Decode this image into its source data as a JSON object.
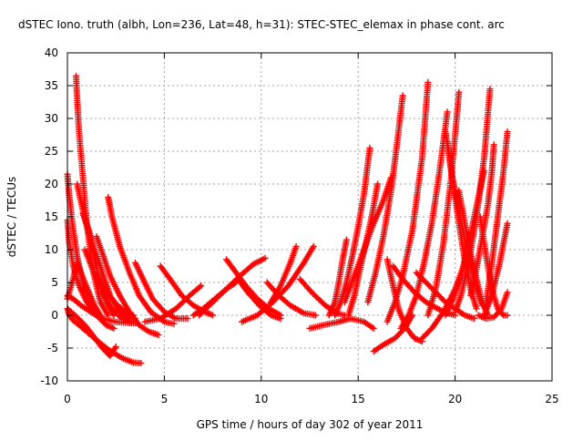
{
  "chart_data": {
    "type": "scatter",
    "title": "dSTEC Iono. truth (albh, Lon=236, Lat=48, h=31): STEC-STEC_elemax in phase cont. arc",
    "xlabel": "GPS time / hours of day 302 of year 2011",
    "ylabel": "dSTEC  / TECUs",
    "xlim": [
      0,
      25
    ],
    "ylim": [
      -10,
      40
    ],
    "xticks": [
      "0",
      "5",
      "10",
      "15",
      "20",
      "25"
    ],
    "yticks": [
      "-10",
      "-5",
      "0",
      "5",
      "10",
      "15",
      "20",
      "25",
      "30",
      "35",
      "40"
    ],
    "grid": true,
    "marker": "plus",
    "color": "#ff0000",
    "series": [
      {
        "x": [
          0.0,
          0.1,
          0.3,
          0.6,
          1.0,
          1.5,
          2.1,
          2.8,
          3.4,
          3.8
        ],
        "y": [
          1,
          0,
          -0.8,
          -1.5,
          -2.5,
          -3.8,
          -5.2,
          -6.5,
          -7.2,
          -7.3
        ]
      },
      {
        "x": [
          0.0,
          0.2,
          0.5,
          0.9,
          1.3,
          1.8,
          2.2,
          2.5
        ],
        "y": [
          1,
          0.5,
          -0.3,
          -1.5,
          -3.0,
          -5.0,
          -6.2,
          -4.8
        ]
      },
      {
        "x": [
          0.0,
          0.1,
          0.3,
          0.5,
          0.8,
          1.1,
          1.5
        ],
        "y": [
          21.5,
          18,
          13,
          9,
          5,
          2.5,
          0
        ]
      },
      {
        "x": [
          0.0,
          0.1,
          0.3,
          0.6,
          1.0,
          1.5,
          2.0,
          2.4
        ],
        "y": [
          14.5,
          11,
          7.5,
          4.5,
          2,
          0,
          -1.5,
          -2
        ]
      },
      {
        "x": [
          0.0,
          0.2,
          0.5,
          0.9,
          1.4,
          1.8
        ],
        "y": [
          2.5,
          4.5,
          8,
          5,
          1.5,
          -0.5
        ]
      },
      {
        "x": [
          0.0,
          0.3,
          0.7,
          1.2,
          1.8,
          2.5,
          3.2,
          3.6
        ],
        "y": [
          3,
          2.5,
          1.5,
          0.5,
          -0.5,
          -1.0,
          -1.2,
          -1.2
        ]
      },
      {
        "x": [
          0.45,
          0.5,
          0.6,
          0.8,
          1.0,
          1.3,
          1.7,
          2.1
        ],
        "y": [
          36.5,
          33,
          28,
          21,
          14,
          7,
          2,
          0
        ]
      },
      {
        "x": [
          0.5,
          0.8,
          1.1,
          1.4,
          1.7,
          2.0,
          2.4
        ],
        "y": [
          20,
          16,
          12.5,
          8.5,
          5,
          2,
          0
        ]
      },
      {
        "x": [
          0.8,
          1.1,
          1.4,
          1.8,
          2.2,
          2.7,
          3.2,
          3.5
        ],
        "y": [
          15.5,
          13,
          10,
          6.5,
          3,
          0.5,
          -0.5,
          -0.5
        ]
      },
      {
        "x": [
          0.9,
          1.3,
          1.8,
          2.3,
          2.8,
          3.3
        ],
        "y": [
          10,
          7,
          3.5,
          1,
          -0.5,
          -1
        ]
      },
      {
        "x": [
          1.5,
          1.8,
          2.2,
          2.7,
          3.2,
          3.7,
          4.2,
          4.7
        ],
        "y": [
          12,
          9.5,
          6,
          3,
          0.5,
          -1.5,
          -2.5,
          -3.0
        ]
      },
      {
        "x": [
          1.5,
          1.8,
          2.2,
          2.6,
          3.0,
          3.4
        ],
        "y": [
          6,
          4.5,
          2.8,
          1.5,
          0.5,
          0
        ]
      },
      {
        "x": [
          2.1,
          2.3,
          2.7,
          3.2,
          3.7,
          4.3,
          5.0,
          5.5
        ],
        "y": [
          18,
          15,
          10.5,
          6.5,
          3,
          0.5,
          -1,
          -1.3
        ]
      },
      {
        "x": [
          3.5,
          3.9,
          4.4,
          5.0,
          5.6,
          6.2
        ],
        "y": [
          8,
          5.5,
          2.5,
          0.5,
          -0.5,
          -0.5
        ]
      },
      {
        "x": [
          4.8,
          5.3,
          5.9,
          6.5,
          7.1,
          7.5
        ],
        "y": [
          7.5,
          5.5,
          3,
          1.5,
          0.5,
          0
        ]
      },
      {
        "x": [
          4.0,
          4.8,
          5.6,
          6.3,
          6.9
        ],
        "y": [
          -1,
          -0.5,
          1,
          3,
          4.5
        ]
      },
      {
        "x": [
          6.5,
          7.0,
          7.6,
          8.2,
          8.7
        ],
        "y": [
          0,
          1,
          2.5,
          4,
          5
        ]
      },
      {
        "x": [
          6.8,
          7.5,
          8.2,
          8.9,
          9.6,
          10.2
        ],
        "y": [
          0,
          2,
          4,
          6,
          7.8,
          8.7
        ]
      },
      {
        "x": [
          8.2,
          8.7,
          9.2,
          9.8,
          10.4,
          11.0
        ],
        "y": [
          8.5,
          6.5,
          4.5,
          2.5,
          1,
          0
        ]
      },
      {
        "x": [
          8.8,
          9.3,
          9.9,
          10.5,
          11.0
        ],
        "y": [
          5.5,
          3.5,
          1.5,
          0,
          -0.5
        ]
      },
      {
        "x": [
          9.0,
          9.8,
          10.6,
          11.4,
          12.2,
          12.7
        ],
        "y": [
          -1,
          0,
          2,
          4.5,
          8,
          10.5
        ]
      },
      {
        "x": [
          10.3,
          10.9,
          11.5,
          12.2,
          12.8
        ],
        "y": [
          5,
          3,
          1.5,
          0.3,
          0
        ]
      },
      {
        "x": [
          10.5,
          11.0,
          11.5,
          11.8
        ],
        "y": [
          2,
          4.5,
          8,
          10.5
        ]
      },
      {
        "x": [
          12.0,
          12.6,
          13.3,
          13.9,
          14.3
        ],
        "y": [
          5.5,
          3.5,
          1.5,
          0.3,
          0
        ]
      },
      {
        "x": [
          12.5,
          13.2,
          14.0,
          14.6,
          15.3,
          15.8
        ],
        "y": [
          -2,
          -1.5,
          -1,
          -0.5,
          -1,
          -2
        ]
      },
      {
        "x": [
          13.5,
          13.8,
          14.0,
          14.2,
          14.4
        ],
        "y": [
          0,
          2,
          5,
          8.5,
          11.5
        ]
      },
      {
        "x": [
          13.8,
          14.1,
          14.4,
          14.7,
          15.0,
          15.3,
          15.6
        ],
        "y": [
          0,
          2,
          5,
          9,
          13.5,
          18.5,
          25.5
        ]
      },
      {
        "x": [
          14.5,
          14.8,
          15.1,
          15.4,
          15.7,
          16.0
        ],
        "y": [
          0,
          3,
          7,
          11,
          15,
          20
        ]
      },
      {
        "x": [
          14.3,
          14.8,
          15.3,
          15.8,
          16.3,
          16.7
        ],
        "y": [
          2,
          6,
          10,
          14,
          17.5,
          21
        ]
      },
      {
        "x": [
          15.5,
          15.9,
          16.3,
          16.7,
          17.0,
          17.3
        ],
        "y": [
          2,
          6.5,
          12,
          19,
          26,
          33.5
        ]
      },
      {
        "x": [
          15.8,
          16.3,
          16.9,
          17.4,
          17.8
        ],
        "y": [
          -5.5,
          -4.5,
          -3.5,
          -2,
          0
        ]
      },
      {
        "x": [
          16.5,
          16.9,
          17.3,
          17.8,
          18.3,
          18.6
        ],
        "y": [
          -1,
          2,
          6,
          13,
          24,
          35.5
        ]
      },
      {
        "x": [
          16.5,
          16.8,
          17.1,
          17.5,
          17.9,
          18.3
        ],
        "y": [
          8.5,
          4.5,
          0.8,
          -2,
          -3.5,
          -4
        ]
      },
      {
        "x": [
          16.8,
          17.3,
          17.9,
          18.5,
          19.1,
          19.6,
          20.0
        ],
        "y": [
          7.5,
          5.5,
          3.5,
          2,
          1,
          0.3,
          0
        ]
      },
      {
        "x": [
          17.2,
          17.6,
          18.0,
          18.4,
          18.8,
          19.2,
          19.6
        ],
        "y": [
          -2,
          0,
          3,
          8,
          14,
          22,
          31
        ]
      },
      {
        "x": [
          18.3,
          18.8,
          19.4,
          20.0,
          20.5
        ],
        "y": [
          -3.5,
          -2,
          0.5,
          4,
          8
        ]
      },
      {
        "x": [
          18.0,
          18.5,
          19.0,
          19.5,
          20.0,
          20.5,
          21.0
        ],
        "y": [
          6.5,
          5,
          3.5,
          2,
          1,
          0,
          -0.5
        ]
      },
      {
        "x": [
          18.6,
          19.0,
          19.4,
          19.8,
          20.2
        ],
        "y": [
          0,
          4,
          11,
          21,
          34
        ]
      },
      {
        "x": [
          19.6,
          19.9,
          20.2,
          20.5,
          20.8,
          21.1
        ],
        "y": [
          26.5,
          20,
          14,
          8.5,
          4,
          1
        ]
      },
      {
        "x": [
          19.5,
          19.8,
          20.2,
          20.6,
          21.0,
          21.4
        ],
        "y": [
          28,
          22,
          16,
          10,
          5,
          1.5
        ]
      },
      {
        "x": [
          20.2,
          20.5,
          20.8,
          21.1,
          21.4,
          21.7
        ],
        "y": [
          19,
          14,
          9.5,
          5.5,
          2,
          0
        ]
      },
      {
        "x": [
          19.5,
          19.9,
          20.3,
          20.7,
          21.1,
          21.5
        ],
        "y": [
          0,
          2.5,
          6,
          11,
          16.5,
          22
        ]
      },
      {
        "x": [
          20.0,
          20.3,
          20.7,
          21.1,
          21.5,
          21.8
        ],
        "y": [
          0.5,
          3,
          8,
          15,
          24,
          34.5
        ]
      },
      {
        "x": [
          20.8,
          21.1,
          21.4,
          21.7,
          21.9,
          22.0
        ],
        "y": [
          3,
          7,
          12,
          17,
          22,
          26
        ]
      },
      {
        "x": [
          21.3,
          21.6,
          21.9,
          22.2,
          22.5,
          22.7
        ],
        "y": [
          15,
          9,
          4,
          1,
          0,
          0
        ]
      },
      {
        "x": [
          21.5,
          21.9,
          22.3,
          22.7
        ],
        "y": [
          0,
          3,
          8,
          14
        ]
      },
      {
        "x": [
          21.6,
          21.9,
          22.2,
          22.5,
          22.7
        ],
        "y": [
          2,
          8,
          15,
          22,
          28
        ]
      },
      {
        "x": [
          21.2,
          21.6,
          22.0,
          22.4,
          22.7
        ],
        "y": [
          0,
          -0.5,
          -0.3,
          1,
          3.5
        ]
      }
    ]
  }
}
